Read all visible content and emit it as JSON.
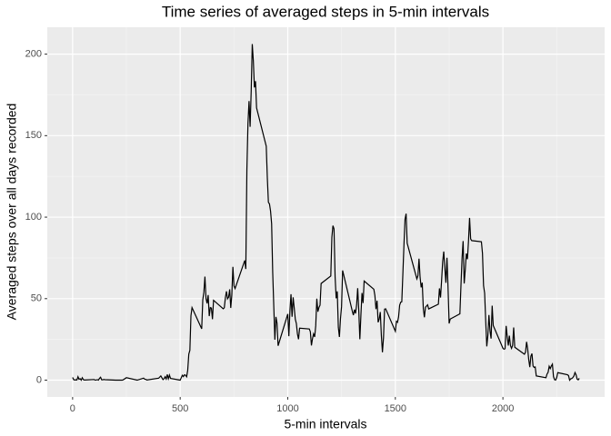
{
  "chart_data": {
    "type": "line",
    "title": "Time series of averaged steps in 5-min intervals",
    "x_label": "5-min intervals",
    "y_label": "Averaged steps over all days recorded",
    "x": [
      0,
      5,
      10,
      15,
      20,
      25,
      30,
      35,
      40,
      45,
      50,
      55,
      100,
      105,
      110,
      115,
      120,
      125,
      130,
      135,
      140,
      145,
      150,
      200,
      230,
      235,
      250,
      300,
      330,
      335,
      340,
      345,
      400,
      410,
      420,
      425,
      430,
      435,
      440,
      445,
      450,
      455,
      500,
      505,
      510,
      515,
      520,
      525,
      530,
      535,
      540,
      545,
      550,
      555,
      600,
      605,
      610,
      615,
      620,
      625,
      630,
      635,
      640,
      645,
      650,
      655,
      700,
      705,
      710,
      715,
      720,
      725,
      730,
      735,
      740,
      745,
      750,
      755,
      800,
      805,
      810,
      815,
      820,
      825,
      830,
      835,
      840,
      845,
      850,
      855,
      900,
      905,
      910,
      915,
      920,
      925,
      930,
      935,
      940,
      945,
      950,
      955,
      1000,
      1005,
      1010,
      1015,
      1020,
      1025,
      1030,
      1035,
      1040,
      1045,
      1050,
      1055,
      1100,
      1105,
      1110,
      1115,
      1120,
      1125,
      1130,
      1135,
      1140,
      1145,
      1150,
      1155,
      1200,
      1205,
      1210,
      1215,
      1220,
      1225,
      1230,
      1235,
      1240,
      1245,
      1250,
      1255,
      1300,
      1305,
      1310,
      1315,
      1320,
      1325,
      1330,
      1335,
      1340,
      1345,
      1350,
      1355,
      1400,
      1405,
      1410,
      1415,
      1420,
      1425,
      1430,
      1435,
      1440,
      1445,
      1450,
      1455,
      1500,
      1505,
      1510,
      1515,
      1520,
      1525,
      1530,
      1535,
      1540,
      1545,
      1550,
      1555,
      1600,
      1605,
      1610,
      1615,
      1620,
      1625,
      1630,
      1635,
      1640,
      1645,
      1650,
      1655,
      1700,
      1705,
      1710,
      1715,
      1720,
      1725,
      1730,
      1735,
      1740,
      1745,
      1750,
      1755,
      1800,
      1805,
      1810,
      1815,
      1820,
      1825,
      1830,
      1835,
      1840,
      1845,
      1850,
      1855,
      1900,
      1905,
      1910,
      1915,
      1920,
      1925,
      1930,
      1935,
      1940,
      1945,
      1950,
      1955,
      2000,
      2005,
      2010,
      2015,
      2020,
      2025,
      2030,
      2035,
      2040,
      2045,
      2050,
      2055,
      2100,
      2105,
      2110,
      2115,
      2120,
      2125,
      2130,
      2135,
      2140,
      2145,
      2150,
      2155,
      2200,
      2205,
      2210,
      2215,
      2220,
      2225,
      2230,
      2235,
      2240,
      2245,
      2250,
      2255,
      2300,
      2305,
      2310,
      2315,
      2320,
      2325,
      2330,
      2335,
      2340,
      2345,
      2350,
      2355
    ],
    "values": [
      1.7,
      0.3,
      0.1,
      0.2,
      0.1,
      2.1,
      0.5,
      0.9,
      0,
      1.5,
      0.3,
      0.1,
      0.4,
      0,
      0.1,
      0.3,
      0,
      1.1,
      1.8,
      0.2,
      0.2,
      0.4,
      0.3,
      0,
      0,
      0.2,
      1.5,
      0,
      1.2,
      0.6,
      0.5,
      0.1,
      1.2,
      2.6,
      0.3,
      0.9,
      2.1,
      0.7,
      3.5,
      0.8,
      3.1,
      1.1,
      0,
      1.5,
      3.0,
      2.2,
      3.3,
      3.0,
      2.1,
      6.1,
      16,
      18.3,
      39.5,
      44.5,
      31.5,
      49.3,
      53.8,
      63.5,
      50,
      47.1,
      52.2,
      39.3,
      44.5,
      44.2,
      37.4,
      49,
      43.8,
      44.4,
      50.5,
      54.5,
      49.9,
      50.9,
      55.7,
      44.3,
      52.3,
      69.5,
      57.8,
      56.2,
      73.4,
      68.2,
      129.4,
      157.5,
      171.2,
      155.4,
      177.3,
      206.2,
      195.9,
      179.6,
      183.4,
      167,
      143.5,
      124,
      109.1,
      108.1,
      103.7,
      95.9,
      66.2,
      45.2,
      24.8,
      38.8,
      35,
      21.1,
      40.6,
      27,
      42.4,
      52.7,
      38.9,
      50.8,
      44.3,
      37.4,
      34.7,
      28.3,
      25.1,
      31.9,
      31.4,
      29.7,
      21.3,
      25.5,
      28.4,
      26.5,
      33.4,
      50,
      42,
      44.6,
      46,
      59.3,
      63.9,
      87.7,
      94.8,
      92.8,
      63.4,
      50.2,
      54.5,
      32.4,
      26.5,
      37.7,
      45.1,
      67.3,
      42.3,
      39.9,
      43.3,
      40.9,
      46.2,
      56.4,
      42.8,
      25.1,
      39.9,
      53.5,
      47.3,
      60.8,
      55.8,
      51.9,
      43.6,
      48.7,
      35.5,
      37.5,
      41.8,
      27.5,
      17.1,
      26.1,
      43.6,
      43.8,
      30,
      36.1,
      35.5,
      38.8,
      46,
      47.8,
      48.1,
      65.3,
      82.9,
      98.7,
      102.1,
      84,
      62.1,
      64.1,
      74.5,
      63.2,
      56.9,
      59.8,
      43.9,
      38.6,
      44.7,
      45.5,
      46.2,
      43.7,
      46.6,
      56.3,
      50.7,
      61.2,
      72.7,
      78.9,
      68.9,
      59.7,
      75.1,
      56.5,
      34.8,
      37.5,
      40.7,
      58,
      74.7,
      85.3,
      59.3,
      67.8,
      77.7,
      74.2,
      85.3,
      99.5,
      86.6,
      85.6,
      84.9,
      77.8,
      58,
      53.4,
      36.3,
      20.7,
      27.4,
      40,
      30.2,
      25.5,
      45.7,
      33.5,
      19.6,
      19,
      19.3,
      33.3,
      26.8,
      21.2,
      27.3,
      21.3,
      19.5,
      21.3,
      32.3,
      20.2,
      15.9,
      17.2,
      23.5,
      19.2,
      12.5,
      8,
      14.7,
      16.3,
      8.7,
      7.8,
      8.1,
      2.6,
      1.5,
      3.7,
      4.8,
      8.5,
      7.1,
      8.7,
      9.8,
      2.2,
      0.3,
      0.1,
      1.6,
      4.6,
      3.3,
      2.8,
      0,
      0.8,
      1,
      1.6,
      2.6,
      4.7,
      3.3,
      0.6,
      0.2,
      1.1
    ],
    "color": "#000000",
    "xlim": [
      -117.75,
      2472.75
    ],
    "xticks": [
      0,
      500,
      1000,
      1500,
      2000
    ],
    "minor_xticks": [
      250,
      750,
      1250,
      1750,
      2250
    ],
    "ylim": [
      -10.3,
      216.5
    ],
    "yticks": [
      0,
      50,
      100,
      150,
      200
    ],
    "minor_yticks": [
      25,
      75,
      125,
      175
    ],
    "grid": true
  }
}
